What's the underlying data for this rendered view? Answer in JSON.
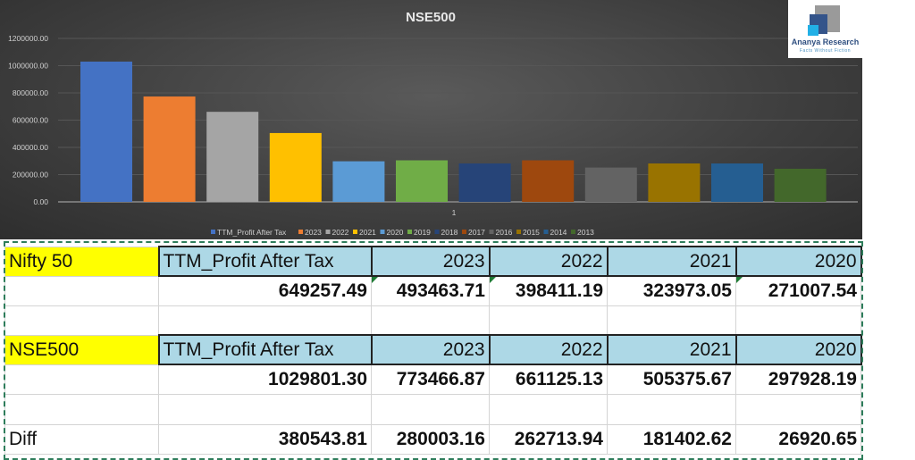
{
  "chart_data": {
    "type": "bar",
    "title": "NSE500",
    "categories": [
      "1"
    ],
    "ylim": [
      0,
      1200000
    ],
    "yticks": [
      "0.00",
      "200000.00",
      "400000.00",
      "600000.00",
      "800000.00",
      "1000000.00",
      "1200000.00"
    ],
    "grid": true,
    "legend_position": "bottom",
    "series": [
      {
        "name": "TTM_Profit After Tax",
        "value": 1029801.3,
        "color": "#4472c4"
      },
      {
        "name": "2023",
        "value": 773466.87,
        "color": "#ed7d31"
      },
      {
        "name": "2022",
        "value": 661125.13,
        "color": "#a5a5a5"
      },
      {
        "name": "2021",
        "value": 505375.67,
        "color": "#ffc000"
      },
      {
        "name": "2020",
        "value": 297928.19,
        "color": "#5b9bd5"
      },
      {
        "name": "2019",
        "value": 305000,
        "color": "#70ad47"
      },
      {
        "name": "2018",
        "value": 282000,
        "color": "#264478"
      },
      {
        "name": "2017",
        "value": 305000,
        "color": "#9e480e"
      },
      {
        "name": "2016",
        "value": 252000,
        "color": "#636363"
      },
      {
        "name": "2015",
        "value": 282000,
        "color": "#997300"
      },
      {
        "name": "2014",
        "value": 282000,
        "color": "#255e91"
      },
      {
        "name": "2013",
        "value": 243000,
        "color": "#43682b"
      }
    ]
  },
  "logo": {
    "name": "Ananya Research",
    "tagline": "Facts Without Fiction"
  },
  "table": {
    "rows": [
      {
        "label": "Nifty 50",
        "cells": [
          "TTM_Profit After Tax",
          "2023",
          "2022",
          "2021",
          "2020"
        ],
        "header": true
      },
      {
        "label": "",
        "cells": [
          "649257.49",
          "493463.71",
          "398411.19",
          "323973.05",
          "271007.54"
        ]
      },
      {
        "label": "",
        "cells": [
          "",
          "",
          "",
          "",
          ""
        ]
      },
      {
        "label": "NSE500",
        "cells": [
          "TTM_Profit After Tax",
          "2023",
          "2022",
          "2021",
          "2020"
        ],
        "header": true
      },
      {
        "label": "",
        "cells": [
          "1029801.30",
          "773466.87",
          "661125.13",
          "505375.67",
          "297928.19"
        ]
      },
      {
        "label": "",
        "cells": [
          "",
          "",
          "",
          "",
          ""
        ]
      },
      {
        "label": "Diff",
        "cells": [
          "380543.81",
          "280003.16",
          "262713.94",
          "181402.62",
          "26920.65"
        ]
      }
    ]
  }
}
